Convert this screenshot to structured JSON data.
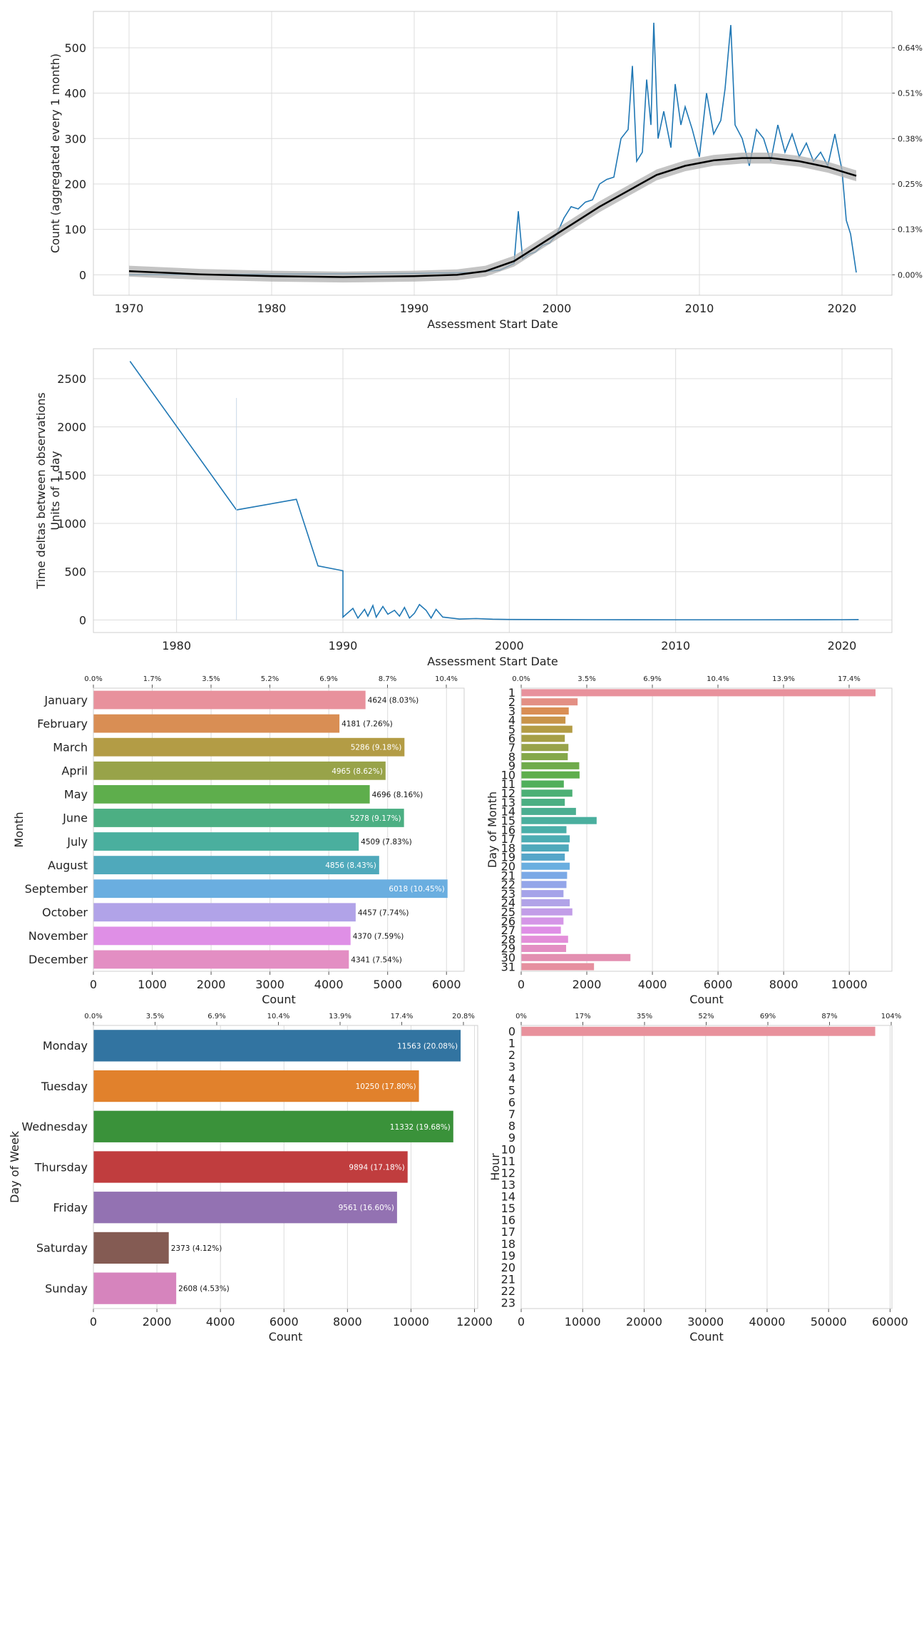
{
  "chart_data": [
    {
      "type": "line",
      "xlabel": "Assessment Start Date",
      "ylabel": "Count (aggregated every 1 month)",
      "xlim": [
        1967.5,
        2023.5
      ],
      "ylim": [
        -45,
        580
      ],
      "x_ticks": [
        "1970",
        "1980",
        "1990",
        "2000",
        "2010",
        "2020"
      ],
      "y_ticks": [
        "0",
        "100",
        "200",
        "300",
        "400",
        "500"
      ],
      "y2_ticks": [
        "0.00%",
        "0.13%",
        "0.25%",
        "0.38%",
        "0.51%",
        "0.64%"
      ],
      "grid": true,
      "series": [
        {
          "role": "monthly counts",
          "color": "#1f77b4",
          "points": [
            [
              1970,
              0
            ],
            [
              1983.5,
              2
            ],
            [
              1990,
              3
            ],
            [
              1994,
              5
            ],
            [
              1996,
              10
            ],
            [
              1997,
              25
            ],
            [
              1997.3,
              140
            ],
            [
              1997.6,
              35
            ],
            [
              1998,
              45
            ],
            [
              1998.5,
              50
            ],
            [
              1999,
              65
            ],
            [
              1999.5,
              70
            ],
            [
              2000,
              90
            ],
            [
              2000.5,
              125
            ],
            [
              2001,
              150
            ],
            [
              2001.5,
              145
            ],
            [
              2002,
              160
            ],
            [
              2002.5,
              165
            ],
            [
              2003,
              200
            ],
            [
              2003.5,
              210
            ],
            [
              2004,
              215
            ],
            [
              2004.5,
              300
            ],
            [
              2005,
              320
            ],
            [
              2005.3,
              460
            ],
            [
              2005.6,
              250
            ],
            [
              2006,
              270
            ],
            [
              2006.3,
              430
            ],
            [
              2006.6,
              330
            ],
            [
              2006.8,
              555
            ],
            [
              2007.1,
              300
            ],
            [
              2007.5,
              360
            ],
            [
              2008,
              280
            ],
            [
              2008.3,
              420
            ],
            [
              2008.7,
              330
            ],
            [
              2009,
              370
            ],
            [
              2009.5,
              320
            ],
            [
              2010,
              260
            ],
            [
              2010.5,
              400
            ],
            [
              2011,
              310
            ],
            [
              2011.5,
              340
            ],
            [
              2011.8,
              410
            ],
            [
              2012.2,
              550
            ],
            [
              2012.5,
              330
            ],
            [
              2013,
              300
            ],
            [
              2013.5,
              240
            ],
            [
              2014,
              320
            ],
            [
              2014.5,
              300
            ],
            [
              2015,
              250
            ],
            [
              2015.5,
              330
            ],
            [
              2016,
              270
            ],
            [
              2016.5,
              310
            ],
            [
              2017,
              260
            ],
            [
              2017.5,
              290
            ],
            [
              2018,
              250
            ],
            [
              2018.5,
              270
            ],
            [
              2019,
              240
            ],
            [
              2019.5,
              310
            ],
            [
              2020,
              230
            ],
            [
              2020.3,
              120
            ],
            [
              2020.6,
              90
            ],
            [
              2021,
              5
            ]
          ]
        },
        {
          "role": "smoothed trend",
          "color": "#000000",
          "band": "#b0b0b0",
          "points": [
            [
              1970,
              8
            ],
            [
              1975,
              1
            ],
            [
              1980,
              -3
            ],
            [
              1985,
              -5
            ],
            [
              1990,
              -3
            ],
            [
              1993,
              0
            ],
            [
              1995,
              8
            ],
            [
              1997,
              30
            ],
            [
              1999,
              70
            ],
            [
              2001,
              110
            ],
            [
              2003,
              150
            ],
            [
              2005,
              185
            ],
            [
              2007,
              220
            ],
            [
              2009,
              240
            ],
            [
              2011,
              252
            ],
            [
              2013,
              257
            ],
            [
              2015,
              257
            ],
            [
              2017,
              250
            ],
            [
              2019,
              237
            ],
            [
              2021,
              218
            ]
          ]
        }
      ]
    },
    {
      "type": "line",
      "xlabel": "Assessment Start Date",
      "ylabel": "Time deltas between observations\nUnits of 1 day",
      "xlim": [
        1975,
        2023
      ],
      "ylim": [
        -130,
        2810
      ],
      "x_ticks": [
        "1980",
        "1990",
        "2000",
        "2010",
        "2020"
      ],
      "y_ticks": [
        "0",
        "500",
        "1000",
        "1500",
        "2000",
        "2500"
      ],
      "grid": true,
      "series": [
        {
          "color": "#1f77b4",
          "points": [
            [
              1977.2,
              2680
            ],
            [
              1983.6,
              1140
            ],
            [
              1987.2,
              1250
            ],
            [
              1988.5,
              560
            ],
            [
              1990,
              510
            ],
            [
              1990,
              30
            ],
            [
              1990.6,
              120
            ],
            [
              1990.9,
              20
            ],
            [
              1991.3,
              110
            ],
            [
              1991.5,
              40
            ],
            [
              1991.8,
              150
            ],
            [
              1992,
              30
            ],
            [
              1992.4,
              140
            ],
            [
              1992.7,
              60
            ],
            [
              1993.1,
              100
            ],
            [
              1993.4,
              40
            ],
            [
              1993.7,
              130
            ],
            [
              1994,
              20
            ],
            [
              1994.3,
              70
            ],
            [
              1994.6,
              160
            ],
            [
              1995,
              100
            ],
            [
              1995.3,
              20
            ],
            [
              1995.6,
              110
            ],
            [
              1996,
              30
            ],
            [
              1996.5,
              20
            ],
            [
              1997,
              10
            ],
            [
              1998,
              15
            ],
            [
              1999,
              8
            ],
            [
              2000,
              5
            ],
            [
              2005,
              3
            ],
            [
              2010,
              2
            ],
            [
              2015,
              2
            ],
            [
              2020,
              3
            ],
            [
              2021,
              4
            ]
          ]
        }
      ]
    },
    {
      "type": "bar",
      "orientation": "horizontal",
      "ylabel": "Month",
      "xlabel": "Count",
      "xlim": [
        0,
        6300
      ],
      "x_ticks": [
        "0",
        "1000",
        "2000",
        "3000",
        "4000",
        "5000",
        "6000"
      ],
      "top_ticks": [
        "0.0%",
        "1.7%",
        "3.5%",
        "5.2%",
        "6.9%",
        "8.7%",
        "10.4%"
      ],
      "categories": [
        "January",
        "February",
        "March",
        "April",
        "May",
        "June",
        "July",
        "August",
        "September",
        "October",
        "November",
        "December"
      ],
      "values": [
        4624,
        4181,
        5286,
        4965,
        4696,
        5278,
        4509,
        4856,
        6018,
        4457,
        4370,
        4341
      ],
      "labels": [
        "4624 (8.03%)",
        "4181 (7.26%)",
        "5286 (9.18%)",
        "4965 (8.62%)",
        "4696 (8.16%)",
        "5278 (9.17%)",
        "4509 (7.83%)",
        "4856 (8.43%)",
        "6018 (10.45%)",
        "4457 (7.74%)",
        "4370 (7.59%)",
        "4341 (7.54%)"
      ],
      "colors": [
        "#e8919c",
        "#d98e54",
        "#b39c45",
        "#98a349",
        "#5eae4c",
        "#4caf83",
        "#4aaf9e",
        "#4fa9bb",
        "#6aaee0",
        "#b1a3e8",
        "#df8fe6",
        "#e38ec3"
      ]
    },
    {
      "type": "bar",
      "orientation": "horizontal",
      "ylabel": "Day of Month",
      "xlabel": "Count",
      "xlim": [
        0,
        11300
      ],
      "x_ticks": [
        "0",
        "2000",
        "4000",
        "6000",
        "8000",
        "10000"
      ],
      "top_ticks": [
        "0.0%",
        "3.5%",
        "6.9%",
        "10.4%",
        "13.9%",
        "17.4%"
      ],
      "categories": [
        "1",
        "2",
        "3",
        "4",
        "5",
        "6",
        "7",
        "8",
        "9",
        "10",
        "11",
        "12",
        "13",
        "14",
        "15",
        "16",
        "17",
        "18",
        "19",
        "20",
        "21",
        "22",
        "23",
        "24",
        "25",
        "26",
        "27",
        "28",
        "29",
        "30",
        "31"
      ],
      "values": [
        10800,
        1720,
        1450,
        1350,
        1560,
        1330,
        1440,
        1420,
        1770,
        1780,
        1300,
        1560,
        1330,
        1670,
        2300,
        1380,
        1480,
        1450,
        1330,
        1480,
        1400,
        1380,
        1290,
        1480,
        1560,
        1290,
        1210,
        1430,
        1370,
        3330,
        2220
      ],
      "colors": [
        "#e8919c",
        "#e38f84",
        "#d98e54",
        "#c9944a",
        "#b39c45",
        "#a69f46",
        "#98a349",
        "#85a84a",
        "#6fab4b",
        "#5eae4c",
        "#50af5b",
        "#4cb075",
        "#4caf83",
        "#4bae91",
        "#4aaf9e",
        "#4aafa9",
        "#4cadb3",
        "#4fa9bb",
        "#56a6c9",
        "#6aaee0",
        "#7aa9e6",
        "#93a5e9",
        "#a5a3e9",
        "#b1a3e8",
        "#c29de8",
        "#d596e7",
        "#df8fe6",
        "#e38ed9",
        "#e38ec3",
        "#e38fb1",
        "#e6909f"
      ]
    },
    {
      "type": "bar",
      "orientation": "horizontal",
      "ylabel": "Day of Week",
      "xlabel": "Count",
      "xlim": [
        0,
        12100
      ],
      "x_ticks": [
        "0",
        "2000",
        "4000",
        "6000",
        "8000",
        "10000",
        "12000"
      ],
      "top_ticks": [
        "0.0%",
        "3.5%",
        "6.9%",
        "10.4%",
        "13.9%",
        "17.4%",
        "20.8%"
      ],
      "categories": [
        "Monday",
        "Tuesday",
        "Wednesday",
        "Thursday",
        "Friday",
        "Saturday",
        "Sunday"
      ],
      "values": [
        11563,
        10250,
        11332,
        9894,
        9561,
        2373,
        2608
      ],
      "labels": [
        "11563 (20.08%)",
        "10250 (17.80%)",
        "11332 (19.68%)",
        "9894 (17.18%)",
        "9561 (16.60%)",
        "2373 (4.12%)",
        "2608 (4.53%)"
      ],
      "colors": [
        "#3274a1",
        "#e1812c",
        "#3a923a",
        "#c03d3e",
        "#9372b2",
        "#845b53",
        "#d684bd"
      ]
    },
    {
      "type": "bar",
      "orientation": "horizontal",
      "ylabel": "Hour",
      "xlabel": "Count",
      "xlim": [
        0,
        60300
      ],
      "x_ticks": [
        "0",
        "10000",
        "20000",
        "30000",
        "40000",
        "50000",
        "60000"
      ],
      "top_ticks": [
        "0%",
        "17%",
        "35%",
        "52%",
        "69%",
        "87%",
        "104%"
      ],
      "categories": [
        "0",
        "1",
        "2",
        "3",
        "4",
        "5",
        "6",
        "7",
        "8",
        "9",
        "10",
        "11",
        "12",
        "13",
        "14",
        "15",
        "16",
        "17",
        "18",
        "19",
        "20",
        "21",
        "22",
        "23"
      ],
      "values": [
        57583,
        0,
        0,
        0,
        0,
        0,
        0,
        0,
        0,
        0,
        0,
        0,
        0,
        0,
        0,
        0,
        0,
        0,
        0,
        0,
        0,
        0,
        0,
        0
      ],
      "colors": [
        "#e8919c"
      ]
    }
  ]
}
